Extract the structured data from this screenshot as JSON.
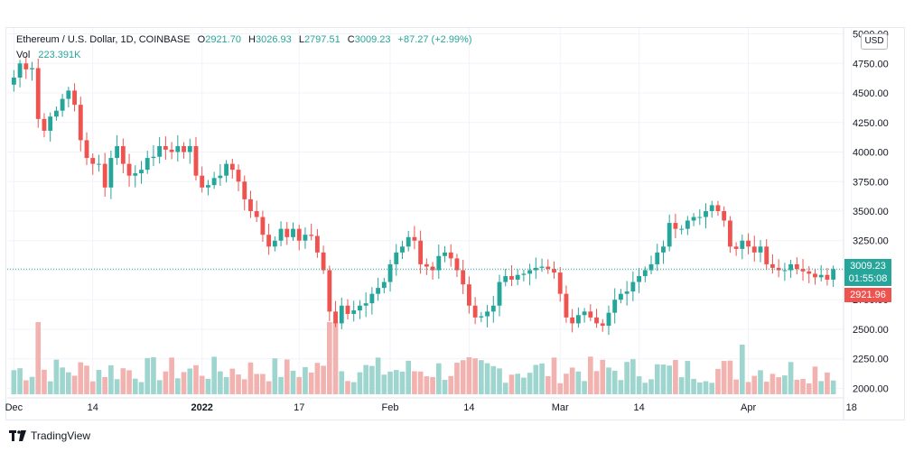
{
  "legend": {
    "symbol": "Ethereum / U.S. Dollar, 1D, COINBASE",
    "open_key": "O",
    "open": "2921.70",
    "high_key": "H",
    "high": "3026.93",
    "low_key": "L",
    "low": "2797.51",
    "close_key": "C",
    "close": "3009.23",
    "change": "+87.27 (+2.99%)",
    "vol_key": "Vol",
    "vol": "223.391K"
  },
  "currency": "USD",
  "price_labels": {
    "last_price": "3009.23",
    "countdown": "01:55:08",
    "prev_close": "2921.96"
  },
  "brand": {
    "name": "TradingView",
    "logo_icon": "tradingview-logo-icon"
  },
  "colors": {
    "up": "#26a69a",
    "down": "#ef5350",
    "vol_up": "#9fd5cf",
    "vol_down": "#f2b2b0"
  },
  "chart_data": {
    "type": "candlestick",
    "title": "Ethereum / U.S. Dollar, 1D, COINBASE",
    "y_axis": {
      "min": 1950,
      "max": 5050,
      "ticks": [
        "2000.00",
        "2250.00",
        "2500.00",
        "2750.00",
        "3000.00",
        "3250.00",
        "3500.00",
        "3750.00",
        "4000.00",
        "4250.00",
        "4500.00",
        "4750.00",
        "5000.00"
      ],
      "position": "right"
    },
    "x_axis": {
      "ticks": [
        {
          "label": "Dec",
          "index": 0
        },
        {
          "label": "14",
          "index": 13
        },
        {
          "label": "2022",
          "index": 31
        },
        {
          "label": "17",
          "index": 47
        },
        {
          "label": "Feb",
          "index": 62
        },
        {
          "label": "14",
          "index": 75
        },
        {
          "label": "Mar",
          "index": 90
        },
        {
          "label": "14",
          "index": 103
        },
        {
          "label": "Apr",
          "index": 121
        },
        {
          "label": "18",
          "index": 138
        }
      ]
    },
    "grid": true,
    "candles_close": [
      4630,
      4750,
      4700,
      4710,
      4280,
      4180,
      4300,
      4350,
      4450,
      4520,
      4400,
      4100,
      3950,
      3900,
      3900,
      3700,
      3950,
      4050,
      3900,
      3800,
      3820,
      3850,
      3950,
      3960,
      4050,
      4020,
      4000,
      4050,
      4000,
      4050,
      3800,
      3700,
      3720,
      3780,
      3800,
      3900,
      3850,
      3750,
      3600,
      3500,
      3450,
      3300,
      3200,
      3250,
      3350,
      3280,
      3350,
      3250,
      3300,
      3290,
      3150,
      3000,
      2650,
      2550,
      2700,
      2630,
      2660,
      2700,
      2720,
      2800,
      2850,
      2900,
      3050,
      3150,
      3200,
      3280,
      3250,
      3050,
      3030,
      3000,
      3120,
      3150,
      3100,
      3000,
      2880,
      2700,
      2600,
      2610,
      2650,
      2700,
      2900,
      2950,
      2920,
      2960,
      2970,
      3000,
      3020,
      3030,
      3010,
      2980,
      2800,
      2600,
      2550,
      2620,
      2650,
      2600,
      2550,
      2530,
      2640,
      2750,
      2800,
      2820,
      2900,
      2950,
      3000,
      3050,
      3150,
      3200,
      3400,
      3350,
      3350,
      3420,
      3450,
      3450,
      3500,
      3550,
      3500,
      3420,
      3200,
      3180,
      3250,
      3200,
      3150,
      3200,
      3050,
      3020,
      3000,
      3000,
      3050,
      3010,
      2990,
      2970,
      2940,
      2960,
      2920,
      3009
    ],
    "volume_hint": "relative daily volume bars along bottom"
  }
}
